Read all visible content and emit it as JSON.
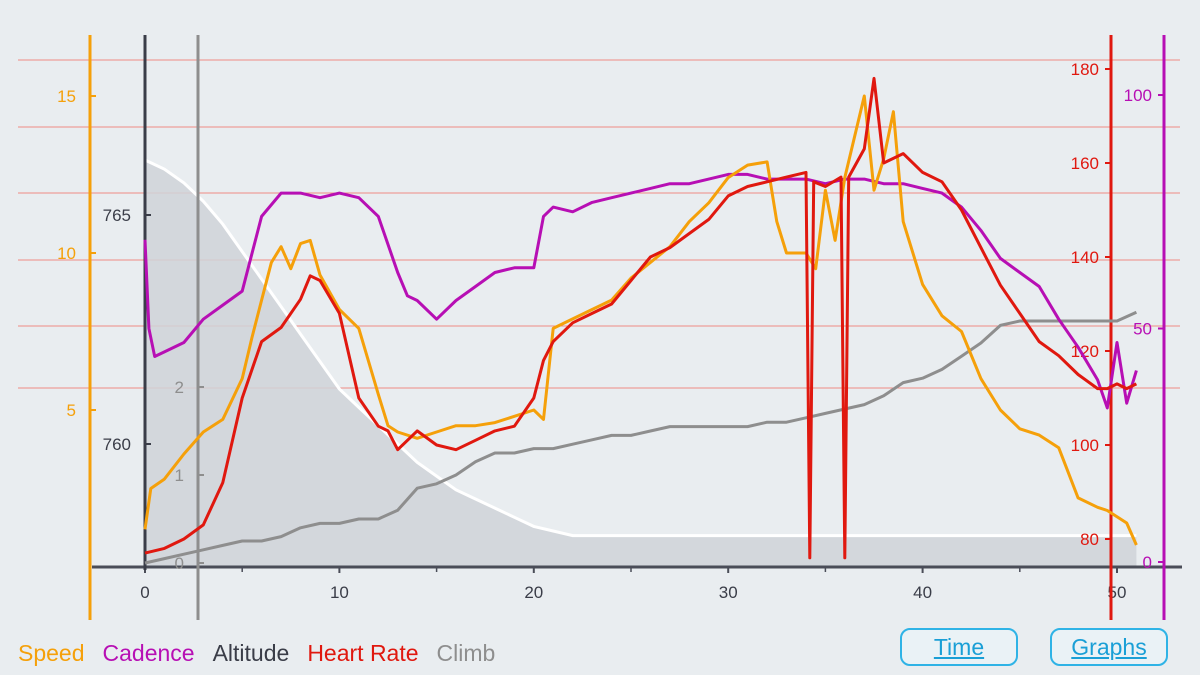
{
  "colors": {
    "speed": "#f5a00a",
    "cadence": "#b70fb4",
    "altitude": "#3a3d48",
    "heart_rate": "#e0180f",
    "climb": "#8e8e8e",
    "altitude_fill": "#cfd2d8",
    "button": "#2fb3e6"
  },
  "legend": {
    "speed": "Speed",
    "cadence": "Cadence",
    "altitude": "Altitude",
    "heart_rate": "Heart Rate",
    "climb": "Climb"
  },
  "buttons": {
    "time": "Time",
    "graphs": "Graphs"
  },
  "chart_data": {
    "type": "line",
    "x_axis": {
      "range": [
        0,
        51
      ],
      "ticks": [
        "0",
        "10",
        "20",
        "30",
        "40",
        "50"
      ]
    },
    "axes": {
      "speed": {
        "range": [
          0,
          15
        ],
        "ticks": [
          "5",
          "10",
          "15"
        ]
      },
      "altitude": {
        "ticks": [
          "760",
          "765"
        ]
      },
      "climb": {
        "range": [
          0,
          2
        ],
        "ticks": [
          "0",
          "1",
          "2"
        ]
      },
      "heart_rate": {
        "range": [
          75,
          185
        ],
        "ticks": [
          "80",
          "100",
          "120",
          "140",
          "160",
          "180"
        ]
      },
      "cadence": {
        "range": [
          0,
          100
        ],
        "ticks": [
          "0",
          "50",
          "100"
        ]
      }
    },
    "series": [
      {
        "name": "Speed",
        "key": "speed",
        "x": [
          0,
          0.3,
          1,
          2,
          3,
          4,
          5,
          5.5,
          6,
          6.5,
          7,
          7.5,
          8,
          8.5,
          9,
          10,
          11,
          12,
          12.5,
          13,
          14,
          15,
          16,
          17,
          18,
          19,
          20,
          20.5,
          21,
          22,
          23,
          24,
          25,
          26,
          27,
          28,
          29,
          30,
          31,
          32,
          32.5,
          33,
          34,
          34.5,
          35,
          35.5,
          36,
          37,
          37.5,
          38,
          38.5,
          39,
          40,
          41,
          42,
          43,
          44,
          45,
          46,
          47,
          48,
          49,
          49.5,
          50,
          50.5,
          51
        ],
        "y": [
          1.2,
          2.5,
          2.8,
          3.6,
          4.3,
          4.7,
          6,
          7.3,
          8.5,
          9.7,
          10.2,
          9.5,
          10.3,
          10.4,
          9.3,
          8.2,
          7.6,
          5.5,
          4.5,
          4.3,
          4.1,
          4.3,
          4.5,
          4.5,
          4.6,
          4.8,
          5.0,
          4.7,
          7.6,
          7.9,
          8.2,
          8.5,
          9.2,
          9.7,
          10.2,
          11.0,
          11.6,
          12.4,
          12.8,
          12.9,
          11.0,
          10.0,
          10.0,
          9.5,
          12.0,
          10.4,
          12.4,
          15.0,
          12.0,
          13.0,
          14.5,
          11.0,
          9.0,
          8.0,
          7.5,
          6.0,
          5.0,
          4.4,
          4.2,
          3.8,
          2.2,
          1.9,
          1.8,
          1.6,
          1.4,
          0.7
        ]
      },
      {
        "name": "Cadence",
        "key": "cadence",
        "x": [
          0,
          0.2,
          0.5,
          1,
          2,
          3,
          4,
          5,
          6,
          7,
          8,
          9,
          10,
          11,
          12,
          13,
          13.5,
          14,
          15,
          16,
          17,
          18,
          19,
          20,
          20.5,
          21,
          22,
          23,
          24,
          25,
          26,
          27,
          28,
          29,
          30,
          31,
          32,
          33,
          34,
          35,
          36,
          37,
          38,
          39,
          40,
          41,
          42,
          43,
          44,
          45,
          46,
          47,
          48,
          49,
          49.5,
          50,
          50.5,
          51
        ],
        "y": [
          69,
          50,
          44,
          45,
          47,
          52,
          55,
          58,
          74,
          79,
          79,
          78,
          79,
          78,
          74,
          62,
          57,
          56,
          52,
          56,
          59,
          62,
          63,
          63,
          74,
          76,
          75,
          77,
          78,
          79,
          80,
          81,
          81,
          82,
          83,
          83,
          82,
          82,
          82,
          81,
          82,
          82,
          81,
          81,
          80,
          79,
          76,
          71,
          65,
          62,
          59,
          52,
          46,
          39,
          33,
          47,
          34,
          41
        ]
      },
      {
        "name": "Altitude",
        "key": "altitude",
        "x": [
          0,
          1,
          2,
          3,
          4,
          5,
          6,
          7,
          8,
          9,
          10,
          11,
          12,
          13,
          14,
          15,
          16,
          17,
          18,
          19,
          20,
          21,
          22,
          23,
          24,
          25,
          26,
          27,
          28,
          29,
          30,
          31,
          32,
          33,
          34,
          35,
          36,
          37,
          38,
          39,
          40,
          41,
          42,
          43,
          44,
          45,
          46,
          47,
          48,
          49,
          50,
          51
        ],
        "y": [
          766.2,
          766.0,
          765.7,
          765.3,
          764.8,
          764.2,
          763.6,
          763.0,
          762.4,
          761.8,
          761.2,
          760.8,
          760.4,
          760.0,
          759.6,
          759.3,
          759.0,
          758.8,
          758.6,
          758.4,
          758.2,
          758.1,
          758.0,
          758.0,
          758.0,
          758.0,
          758.0,
          758.0,
          758.0,
          758.0,
          758.0,
          758.0,
          758.0,
          758.0,
          758.0,
          758.0,
          758.0,
          758.0,
          758.0,
          758.0,
          758.0,
          758.0,
          758.0,
          758.0,
          758.0,
          758.0,
          758.0,
          758.0,
          758.0,
          758.0,
          758.0,
          758.0
        ]
      },
      {
        "name": "Heart Rate",
        "key": "heart_rate",
        "x": [
          0,
          1,
          2,
          3,
          4,
          5,
          5.5,
          6,
          7,
          8,
          8.5,
          9,
          10,
          11,
          12,
          12.5,
          13,
          14,
          15,
          16,
          17,
          18,
          19,
          20,
          20.5,
          21,
          22,
          23,
          24,
          25,
          26,
          27,
          28,
          29,
          30,
          31,
          32,
          33,
          34,
          34.2,
          34.4,
          35,
          35.8,
          36,
          36.2,
          37,
          37.5,
          38,
          39,
          40,
          41,
          42,
          43,
          44,
          45,
          46,
          47,
          48,
          49,
          49.5,
          50,
          50.5,
          51
        ],
        "y": [
          77,
          78,
          80,
          83,
          92,
          110,
          116,
          122,
          125,
          131,
          136,
          135,
          128,
          110,
          104,
          103,
          99,
          103,
          100,
          99,
          101,
          103,
          104,
          110,
          118,
          122,
          126,
          128,
          130,
          135,
          140,
          142,
          145,
          148,
          153,
          155,
          156,
          157,
          158,
          76,
          156,
          155,
          157,
          76,
          157,
          163,
          178,
          160,
          162,
          158,
          156,
          150,
          142,
          134,
          128,
          122,
          119,
          115,
          112,
          112,
          113,
          112,
          113
        ]
      },
      {
        "name": "Climb",
        "key": "climb",
        "x": [
          0,
          1,
          2,
          3,
          4,
          5,
          6,
          7,
          8,
          9,
          10,
          11,
          12,
          13,
          14,
          15,
          16,
          17,
          18,
          19,
          20,
          21,
          22,
          23,
          24,
          25,
          26,
          27,
          28,
          29,
          30,
          31,
          32,
          33,
          34,
          35,
          36,
          37,
          38,
          39,
          40,
          41,
          42,
          43,
          44,
          45,
          46,
          47,
          48,
          49,
          50,
          51
        ],
        "y": [
          0.0,
          0.05,
          0.1,
          0.15,
          0.2,
          0.25,
          0.25,
          0.3,
          0.4,
          0.45,
          0.45,
          0.5,
          0.5,
          0.6,
          0.85,
          0.9,
          1.0,
          1.15,
          1.25,
          1.25,
          1.3,
          1.3,
          1.35,
          1.4,
          1.45,
          1.45,
          1.5,
          1.55,
          1.55,
          1.55,
          1.55,
          1.55,
          1.6,
          1.6,
          1.65,
          1.7,
          1.75,
          1.8,
          1.9,
          2.05,
          2.1,
          2.2,
          2.35,
          2.5,
          2.7,
          2.75,
          2.75,
          2.75,
          2.75,
          2.75,
          2.75,
          2.85
        ]
      }
    ]
  }
}
